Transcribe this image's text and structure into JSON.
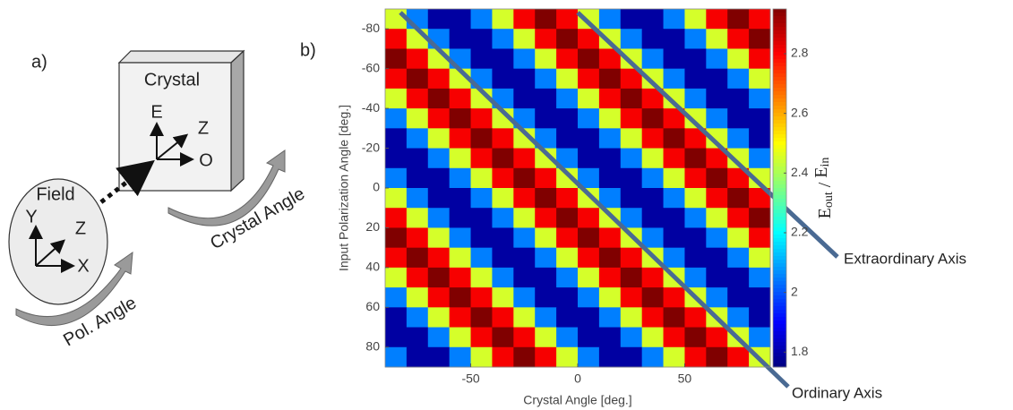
{
  "panel_labels": [
    "a)",
    "b)"
  ],
  "diagram": {
    "crystal": {
      "label": "Crystal",
      "axes": [
        "E",
        "Z",
        "O"
      ]
    },
    "field": {
      "label": "Field",
      "axes": [
        "Y",
        "Z",
        "X"
      ]
    },
    "arrows": [
      "Pol. Angle",
      "Crystal Angle"
    ]
  },
  "chart_data": {
    "type": "heatmap",
    "xlabel": "Crystal Angle [deg.]",
    "ylabel": "Input Polarization Angle [deg.]",
    "colorbar_label": [
      "E",
      "out",
      " / ",
      "E",
      "in"
    ],
    "colormap": "jet",
    "y_inverted": true,
    "x": [
      -85,
      -75,
      -65,
      -55,
      -45,
      -35,
      -25,
      -15,
      -5,
      5,
      15,
      25,
      35,
      45,
      55,
      65,
      75,
      85
    ],
    "y": [
      -85,
      -75,
      -65,
      -55,
      -45,
      -35,
      -25,
      -15,
      -5,
      5,
      15,
      25,
      35,
      45,
      55,
      65,
      75,
      85
    ],
    "xlim": [
      -90,
      90
    ],
    "ylim": [
      -90,
      90
    ],
    "xticks": [
      -50,
      0,
      50
    ],
    "yticks": [
      -80,
      -60,
      -40,
      -20,
      0,
      20,
      40,
      60,
      80
    ],
    "clim": [
      1.75,
      2.95
    ],
    "cticks": [
      1.8,
      2,
      2.2,
      2.4,
      2.6,
      2.8
    ],
    "values": [
      [
        2.45,
        2.05,
        1.79,
        1.79,
        2.05,
        2.45,
        2.81,
        2.95,
        2.81,
        2.45,
        2.05,
        1.79,
        1.79,
        2.05,
        2.45,
        2.81,
        2.95,
        2.81
      ],
      [
        2.81,
        2.45,
        2.05,
        1.79,
        1.79,
        2.05,
        2.45,
        2.81,
        2.95,
        2.81,
        2.45,
        2.05,
        1.79,
        1.79,
        2.05,
        2.45,
        2.81,
        2.95
      ],
      [
        2.95,
        2.81,
        2.45,
        2.05,
        1.79,
        1.79,
        2.05,
        2.45,
        2.81,
        2.95,
        2.81,
        2.45,
        2.05,
        1.79,
        1.79,
        2.05,
        2.45,
        2.81
      ],
      [
        2.81,
        2.95,
        2.81,
        2.45,
        2.05,
        1.79,
        1.79,
        2.05,
        2.45,
        2.81,
        2.95,
        2.81,
        2.45,
        2.05,
        1.79,
        1.79,
        2.05,
        2.45
      ],
      [
        2.45,
        2.81,
        2.95,
        2.81,
        2.45,
        2.05,
        1.79,
        1.79,
        2.05,
        2.45,
        2.81,
        2.95,
        2.81,
        2.45,
        2.05,
        1.79,
        1.79,
        2.05
      ],
      [
        2.05,
        2.45,
        2.81,
        2.95,
        2.81,
        2.45,
        2.05,
        1.79,
        1.79,
        2.05,
        2.45,
        2.81,
        2.95,
        2.81,
        2.45,
        2.05,
        1.79,
        1.79
      ],
      [
        1.79,
        2.05,
        2.45,
        2.81,
        2.95,
        2.81,
        2.45,
        2.05,
        1.79,
        1.79,
        2.05,
        2.45,
        2.81,
        2.95,
        2.81,
        2.45,
        2.05,
        1.79
      ],
      [
        1.79,
        1.79,
        2.05,
        2.45,
        2.81,
        2.95,
        2.81,
        2.45,
        2.05,
        1.79,
        1.79,
        2.05,
        2.45,
        2.81,
        2.95,
        2.81,
        2.45,
        2.05
      ],
      [
        2.05,
        1.79,
        1.79,
        2.05,
        2.45,
        2.81,
        2.95,
        2.81,
        2.45,
        2.05,
        1.79,
        1.79,
        2.05,
        2.45,
        2.81,
        2.95,
        2.81,
        2.45
      ],
      [
        2.45,
        2.05,
        1.79,
        1.79,
        2.05,
        2.45,
        2.81,
        2.95,
        2.81,
        2.45,
        2.05,
        1.79,
        1.79,
        2.05,
        2.45,
        2.81,
        2.95,
        2.81
      ],
      [
        2.81,
        2.45,
        2.05,
        1.79,
        1.79,
        2.05,
        2.45,
        2.81,
        2.95,
        2.81,
        2.45,
        2.05,
        1.79,
        1.79,
        2.05,
        2.45,
        2.81,
        2.95
      ],
      [
        2.95,
        2.81,
        2.45,
        2.05,
        1.79,
        1.79,
        2.05,
        2.45,
        2.81,
        2.95,
        2.81,
        2.45,
        2.05,
        1.79,
        1.79,
        2.05,
        2.45,
        2.81
      ],
      [
        2.81,
        2.95,
        2.81,
        2.45,
        2.05,
        1.79,
        1.79,
        2.05,
        2.45,
        2.81,
        2.95,
        2.81,
        2.45,
        2.05,
        1.79,
        1.79,
        2.05,
        2.45
      ],
      [
        2.45,
        2.81,
        2.95,
        2.81,
        2.45,
        2.05,
        1.79,
        1.79,
        2.05,
        2.45,
        2.81,
        2.95,
        2.81,
        2.45,
        2.05,
        1.79,
        1.79,
        2.05
      ],
      [
        2.05,
        2.45,
        2.81,
        2.95,
        2.81,
        2.45,
        2.05,
        1.79,
        1.79,
        2.05,
        2.45,
        2.81,
        2.95,
        2.81,
        2.45,
        2.05,
        1.79,
        1.79
      ],
      [
        1.79,
        2.05,
        2.45,
        2.81,
        2.95,
        2.81,
        2.45,
        2.05,
        1.79,
        1.79,
        2.05,
        2.45,
        2.81,
        2.95,
        2.81,
        2.45,
        2.05,
        1.79
      ],
      [
        1.79,
        1.79,
        2.05,
        2.45,
        2.81,
        2.95,
        2.81,
        2.45,
        2.05,
        1.79,
        1.79,
        2.05,
        2.45,
        2.81,
        2.95,
        2.81,
        2.45,
        2.05
      ],
      [
        2.05,
        1.79,
        1.79,
        2.05,
        2.45,
        2.81,
        2.95,
        2.81,
        2.45,
        2.05,
        1.79,
        1.79,
        2.05,
        2.45,
        2.81,
        2.95,
        2.81,
        2.45
      ]
    ],
    "annotations": [
      "Ordinary Axis",
      "Extraordinary Axis"
    ]
  }
}
